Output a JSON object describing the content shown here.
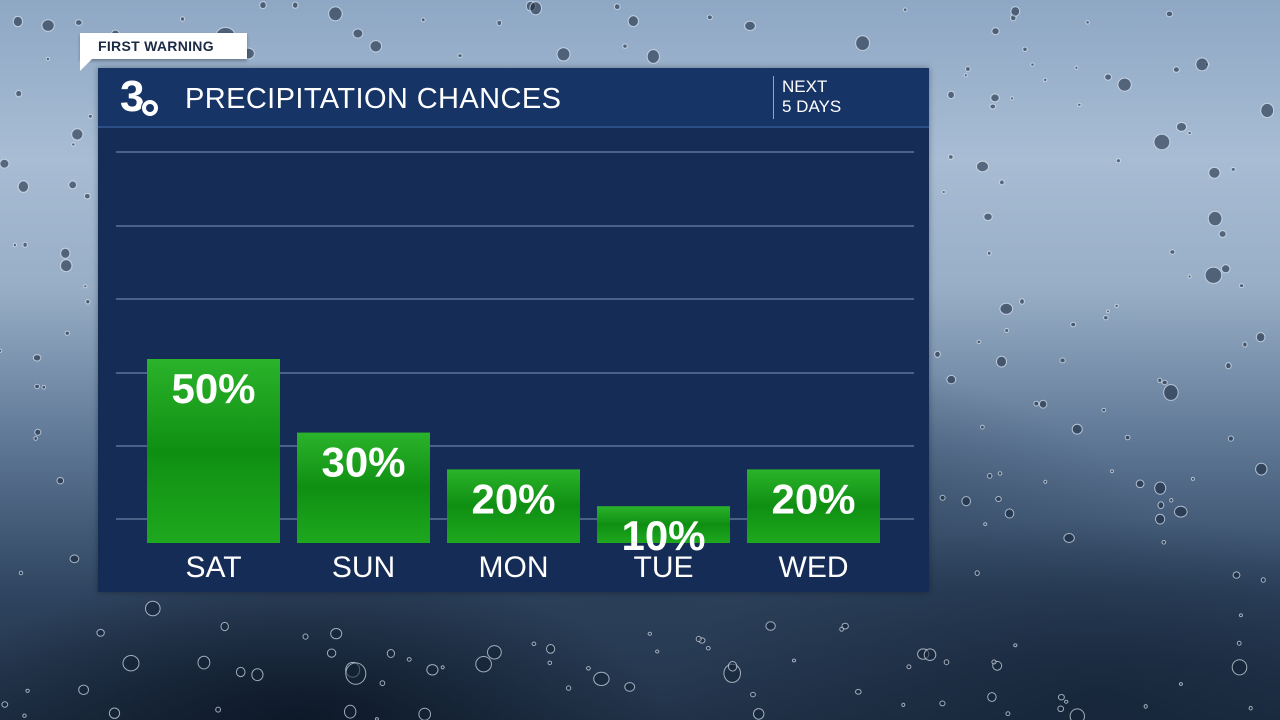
{
  "badge": {
    "label": "FIRST WARNING"
  },
  "logo": {
    "number": "3"
  },
  "header": {
    "title": "PRECIPITATION CHANCES",
    "period_line1": "NEXT",
    "period_line2": "5 DAYS"
  },
  "colors": {
    "panel": "#152c57",
    "header": "#173467",
    "bar": "#1f9e1f",
    "text": "#ffffff",
    "grid": "#4b6288"
  },
  "chart_data": {
    "type": "bar",
    "title": "PRECIPITATION CHANCES",
    "categories": [
      "SAT",
      "SUN",
      "MON",
      "TUE",
      "WED"
    ],
    "values": [
      50,
      30,
      20,
      10,
      20
    ],
    "value_labels": [
      "50%",
      "30%",
      "20%",
      "10%",
      "20%"
    ],
    "unit": "%",
    "ylim": [
      0,
      100
    ],
    "grid": true
  }
}
